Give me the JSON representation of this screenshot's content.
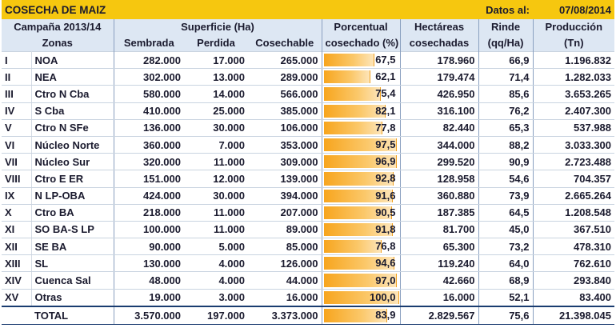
{
  "header": {
    "title": "COSECHA DE MAIZ",
    "date_label": "Datos al:",
    "date_value": "07/08/2014"
  },
  "columns": {
    "campaign": "Campaña 2013/14",
    "superficie": "Superficie (Ha)",
    "zonas": "Zonas",
    "sembrada": "Sembrada",
    "perdida": "Perdida",
    "cosechable": "Cosechable",
    "porcentual_1": "Porcentual",
    "porcentual_2": "cosechado (%)",
    "hectareas_1": "Hectáreas",
    "hectareas_2": "cosechadas",
    "rinde_1": "Rinde",
    "rinde_2": "(qq/Ha)",
    "produccion_1": "Producción",
    "produccion_2": "(Tn)"
  },
  "rows": [
    {
      "num": "I",
      "zona": "NOA",
      "sembrada": "282.000",
      "perdida": "17.000",
      "cosechable": "265.000",
      "pct_label": "67,5",
      "pct": 67.5,
      "hectareas": "178.960",
      "rinde": "66,9",
      "produccion": "1.196.832"
    },
    {
      "num": "II",
      "zona": "NEA",
      "sembrada": "302.000",
      "perdida": "13.000",
      "cosechable": "289.000",
      "pct_label": "62,1",
      "pct": 62.1,
      "hectareas": "179.474",
      "rinde": "71,4",
      "produccion": "1.282.033"
    },
    {
      "num": "III",
      "zona": "Ctro N Cba",
      "sembrada": "580.000",
      "perdida": "14.000",
      "cosechable": "566.000",
      "pct_label": "75,4",
      "pct": 75.4,
      "hectareas": "426.950",
      "rinde": "85,6",
      "produccion": "3.653.265"
    },
    {
      "num": "IV",
      "zona": "S Cba",
      "sembrada": "410.000",
      "perdida": "25.000",
      "cosechable": "385.000",
      "pct_label": "82,1",
      "pct": 82.1,
      "hectareas": "316.100",
      "rinde": "76,2",
      "produccion": "2.407.300"
    },
    {
      "num": "V",
      "zona": "Ctro N SFe",
      "sembrada": "136.000",
      "perdida": "30.000",
      "cosechable": "106.000",
      "pct_label": "77,8",
      "pct": 77.8,
      "hectareas": "82.440",
      "rinde": "65,3",
      "produccion": "537.988"
    },
    {
      "num": "VI",
      "zona": "Núcleo Norte",
      "sembrada": "360.000",
      "perdida": "7.000",
      "cosechable": "353.000",
      "pct_label": "97,5",
      "pct": 97.5,
      "hectareas": "344.000",
      "rinde": "88,2",
      "produccion": "3.033.300"
    },
    {
      "num": "VII",
      "zona": "Núcleo Sur",
      "sembrada": "320.000",
      "perdida": "11.000",
      "cosechable": "309.000",
      "pct_label": "96,9",
      "pct": 96.9,
      "hectareas": "299.520",
      "rinde": "90,9",
      "produccion": "2.723.488"
    },
    {
      "num": "VIII",
      "zona": "Ctro E ER",
      "sembrada": "151.000",
      "perdida": "12.000",
      "cosechable": "139.000",
      "pct_label": "92,8",
      "pct": 92.8,
      "hectareas": "128.958",
      "rinde": "54,6",
      "produccion": "704.357"
    },
    {
      "num": "IX",
      "zona": "N LP-OBA",
      "sembrada": "424.000",
      "perdida": "30.000",
      "cosechable": "394.000",
      "pct_label": "91,6",
      "pct": 91.6,
      "hectareas": "360.880",
      "rinde": "73,9",
      "produccion": "2.665.264"
    },
    {
      "num": "X",
      "zona": "Ctro BA",
      "sembrada": "218.000",
      "perdida": "11.000",
      "cosechable": "207.000",
      "pct_label": "90,5",
      "pct": 90.5,
      "hectareas": "187.385",
      "rinde": "64,5",
      "produccion": "1.208.548"
    },
    {
      "num": "XI",
      "zona": "SO BA-S LP",
      "sembrada": "100.000",
      "perdida": "11.000",
      "cosechable": "89.000",
      "pct_label": "91,8",
      "pct": 91.8,
      "hectareas": "81.700",
      "rinde": "45,0",
      "produccion": "367.510"
    },
    {
      "num": "XII",
      "zona": "SE BA",
      "sembrada": "90.000",
      "perdida": "5.000",
      "cosechable": "85.000",
      "pct_label": "76,8",
      "pct": 76.8,
      "hectareas": "65.300",
      "rinde": "73,2",
      "produccion": "478.310"
    },
    {
      "num": "XIII",
      "zona": "SL",
      "sembrada": "130.000",
      "perdida": "4.000",
      "cosechable": "126.000",
      "pct_label": "94,6",
      "pct": 94.6,
      "hectareas": "119.240",
      "rinde": "64,0",
      "produccion": "762.610"
    },
    {
      "num": "XIV",
      "zona": "Cuenca Sal",
      "sembrada": "48.000",
      "perdida": "4.000",
      "cosechable": "44.000",
      "pct_label": "97,0",
      "pct": 97.0,
      "hectareas": "42.660",
      "rinde": "68,9",
      "produccion": "293.840"
    },
    {
      "num": "XV",
      "zona": "Otras",
      "sembrada": "19.000",
      "perdida": "3.000",
      "cosechable": "16.000",
      "pct_label": "100,0",
      "pct": 100.0,
      "hectareas": "16.000",
      "rinde": "52,1",
      "produccion": "83.400"
    }
  ],
  "total": {
    "label": "TOTAL",
    "sembrada": "3.570.000",
    "perdida": "197.000",
    "cosechable": "3.373.000",
    "pct_label": "83,9",
    "pct": 83.9,
    "hectareas": "2.829.567",
    "rinde": "75,6",
    "produccion": "21.398.045"
  },
  "colors": {
    "title_bg": "#f6c70f",
    "header_bg": "#dde7f3",
    "bar": "#f7a51e"
  }
}
